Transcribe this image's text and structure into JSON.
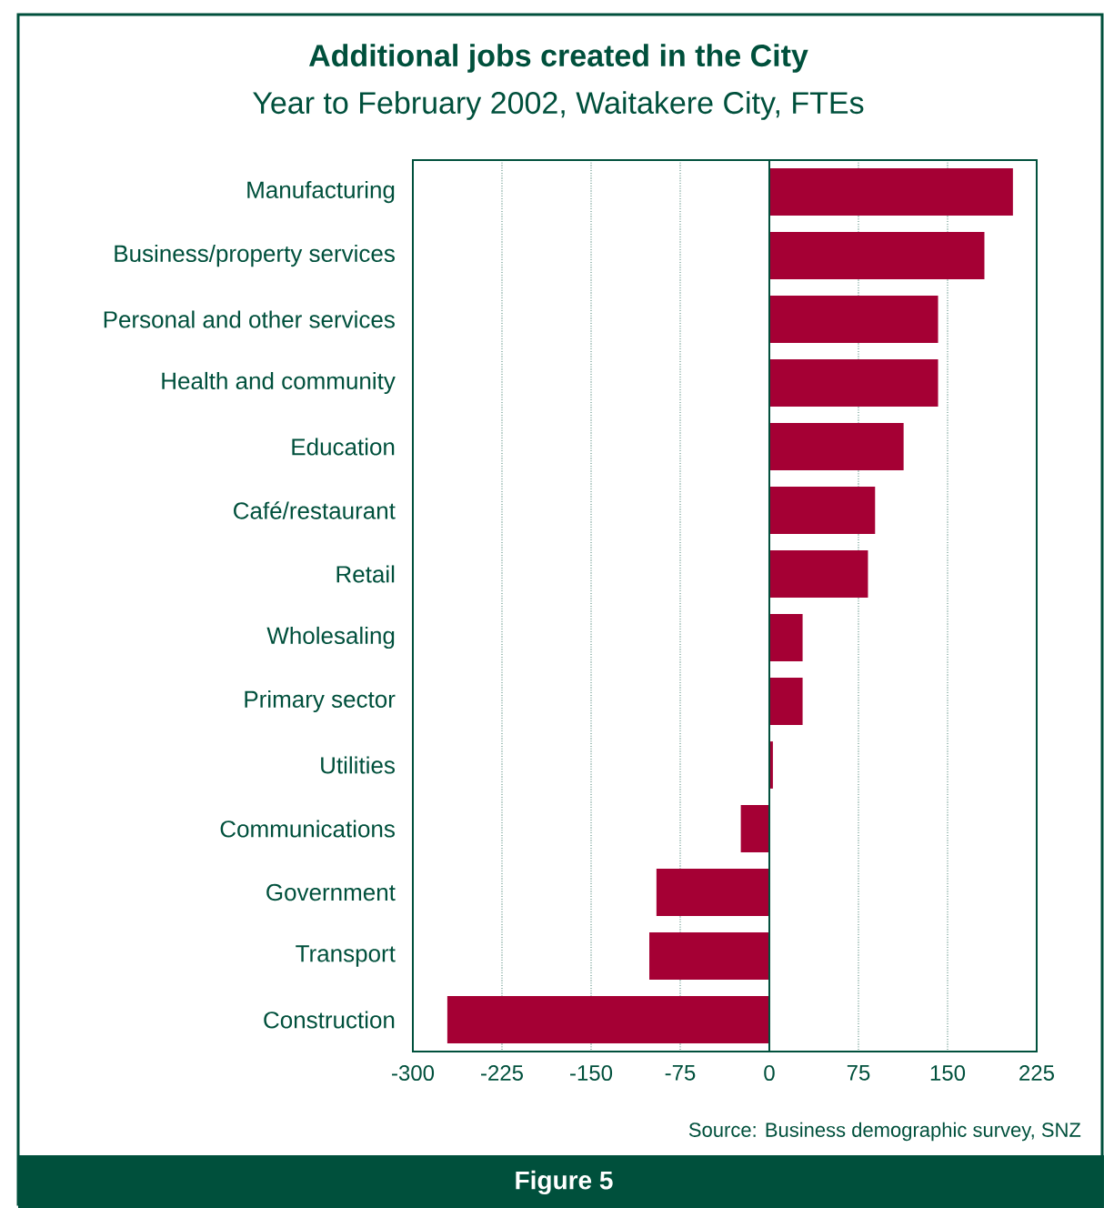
{
  "chart_data": {
    "type": "bar",
    "orientation": "horizontal",
    "title": "Additional jobs created in the City",
    "subtitle": "Year to February 2002, Waitakere City, FTEs",
    "categories": [
      "Manufacturing",
      "Business/property services",
      "Personal and other services",
      "Health and community",
      "Education",
      "Café/restaurant",
      "Retail",
      "Wholesaling",
      "Primary sector",
      "Utilities",
      "Communications",
      "Government",
      "Transport",
      "Construction"
    ],
    "values": [
      205,
      181,
      142,
      142,
      113,
      89,
      83,
      28,
      28,
      3,
      -24,
      -95,
      -101,
      -271
    ],
    "color": "#a50034",
    "xlim": [
      -300,
      225
    ],
    "xticks": [
      -300,
      -225,
      -150,
      -75,
      0,
      75,
      150,
      225
    ],
    "grid": "x",
    "annotations": [
      "Source: Business  demographic  survey, SNZ",
      "Figure 5"
    ]
  }
}
